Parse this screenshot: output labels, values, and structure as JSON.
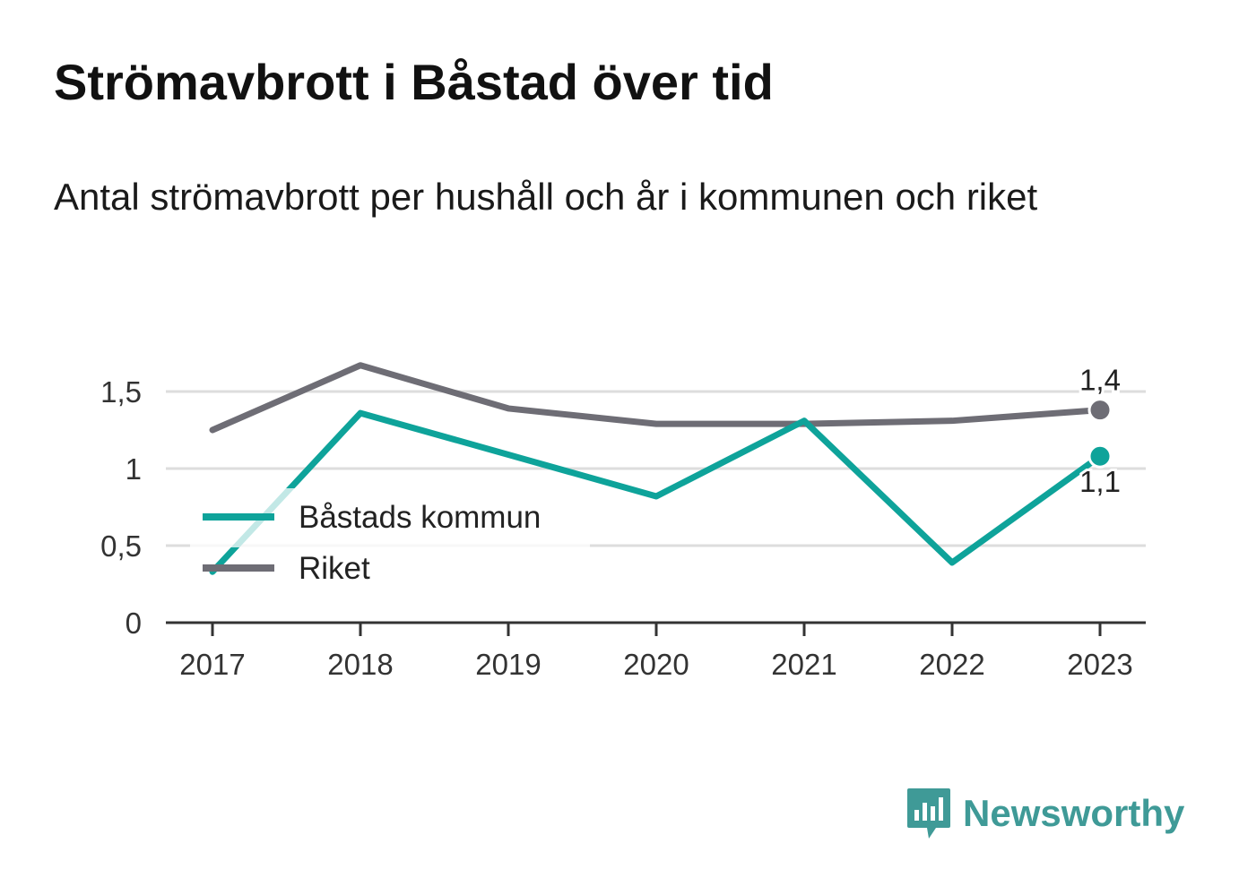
{
  "title": "Strömavbrott i Båstad över tid",
  "subtitle": "Antal strömavbrott per hushåll och år i kommunen och riket",
  "brand": {
    "name": "Newsworthy",
    "icon": "chart-bubble-icon",
    "color": "#3f9a97"
  },
  "chart_data": {
    "type": "line",
    "categories": [
      "2017",
      "2018",
      "2019",
      "2020",
      "2021",
      "2022",
      "2023"
    ],
    "yticks": [
      "0",
      "0,5",
      "1",
      "1,5"
    ],
    "ylim": [
      0,
      1.5
    ],
    "grid": true,
    "legend_position": "left-middle",
    "series": [
      {
        "name": "Båstads kommun",
        "color": "#0ea39a",
        "values": [
          0.33,
          1.36,
          1.09,
          0.82,
          1.31,
          0.39,
          1.08
        ],
        "end_label": "1,1"
      },
      {
        "name": "Riket",
        "color": "#6e6d75",
        "values": [
          1.25,
          1.67,
          1.39,
          1.29,
          1.29,
          1.31,
          1.38
        ],
        "end_label": "1,4"
      }
    ]
  }
}
